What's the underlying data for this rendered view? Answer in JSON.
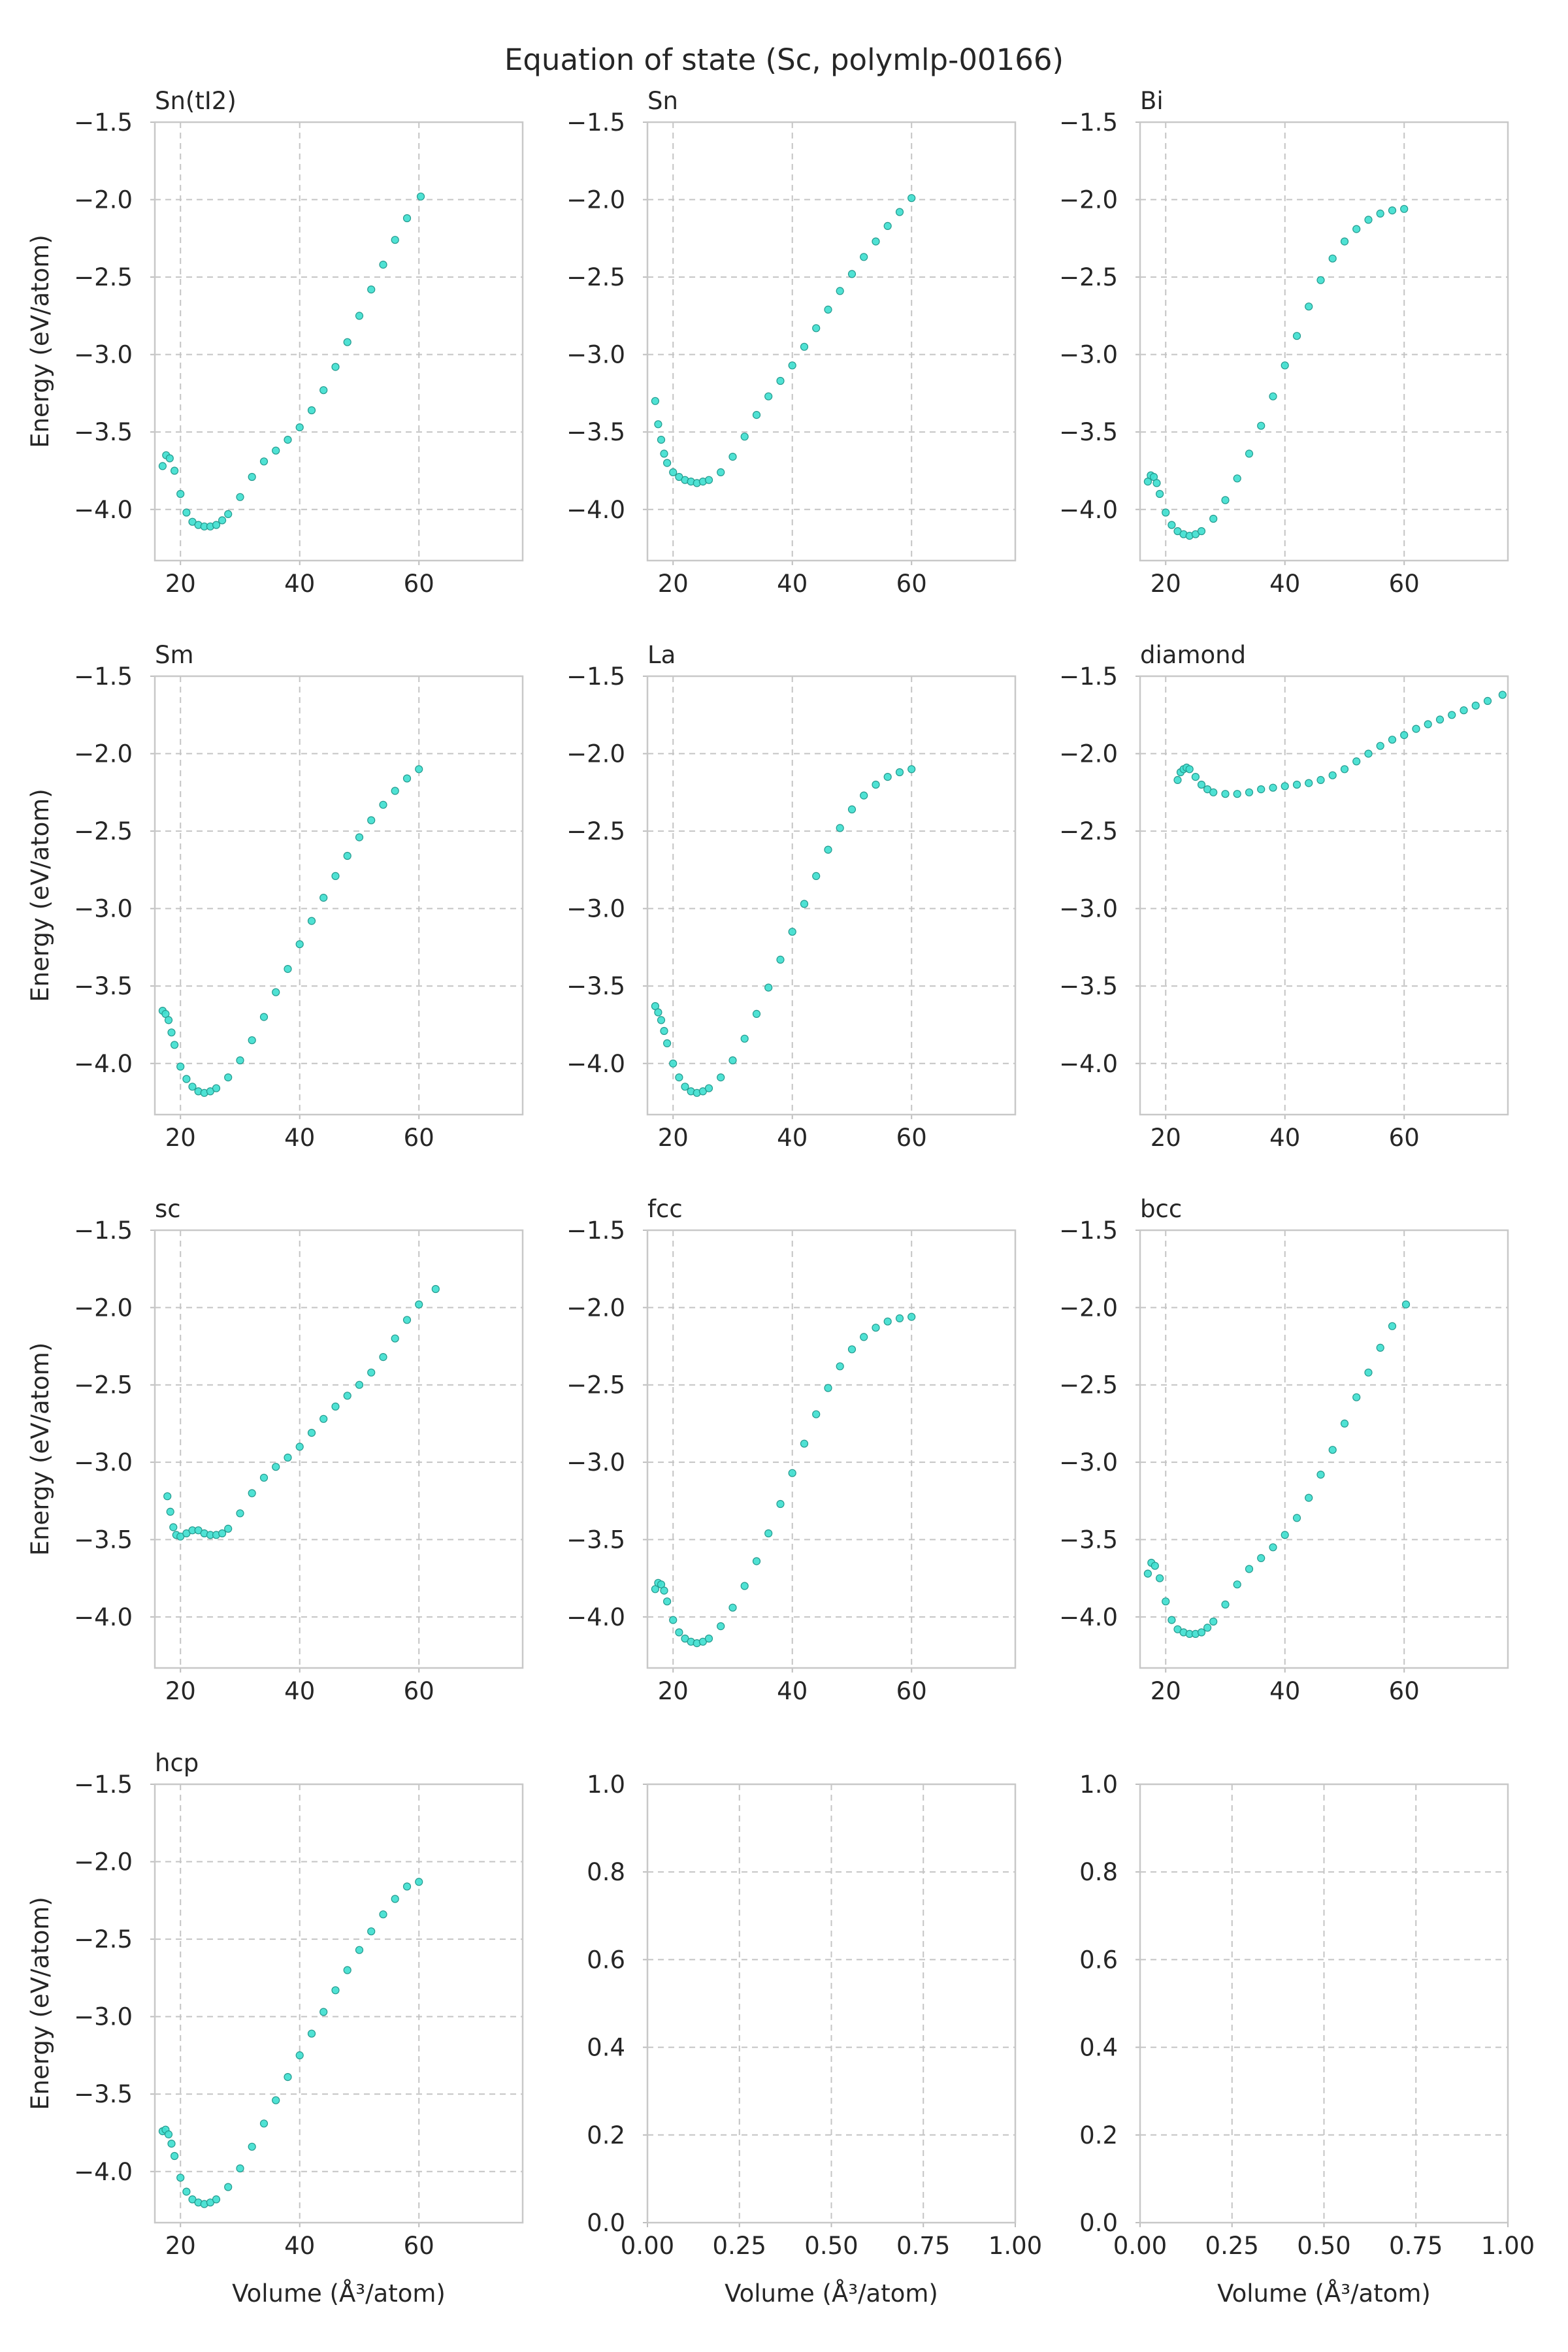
{
  "title": "Equation of state (Sc, polymlp-00166)",
  "colors": {
    "marker_fill": "#40e0d0",
    "marker_edge": "#249a8e",
    "grid": "#c4c4c4",
    "frame": "#c8c8c8"
  },
  "chart_data": [
    {
      "type": "scatter",
      "title": "Sn(tI2)",
      "xlabel": "",
      "ylabel": "Energy (eV/atom)",
      "xlim": [
        15.7,
        77.4
      ],
      "ylim": [
        -4.33,
        -1.5
      ],
      "xticks": [
        "20",
        "40",
        "60"
      ],
      "yticks": [
        "-1.5",
        "-2.0",
        "-2.5",
        "-3.0",
        "-3.5",
        "-4.0"
      ],
      "grid": true,
      "series": [
        {
          "x": [
            17.0,
            17.6,
            18.2,
            19.0,
            20.0,
            21.0,
            22.0,
            23.0,
            24.0,
            25.0,
            26.0,
            27.0,
            28.0,
            30.0,
            32.0,
            34.0,
            36.0,
            38.0,
            40.0,
            42.0,
            44.0,
            46.0,
            48.0,
            50.0,
            52.0,
            54.0,
            56.0,
            58.0,
            60.3
          ],
          "y": [
            -3.72,
            -3.65,
            -3.67,
            -3.75,
            -3.9,
            -4.02,
            -4.08,
            -4.1,
            -4.11,
            -4.11,
            -4.1,
            -4.07,
            -4.03,
            -3.92,
            -3.79,
            -3.69,
            -3.62,
            -3.55,
            -3.47,
            -3.36,
            -3.23,
            -3.08,
            -2.92,
            -2.75,
            -2.58,
            -2.42,
            -2.26,
            -2.12,
            -1.98
          ]
        }
      ]
    },
    {
      "type": "scatter",
      "title": "Sn",
      "xlabel": "",
      "ylabel": "",
      "xlim": [
        15.7,
        77.4
      ],
      "ylim": [
        -4.33,
        -1.5
      ],
      "xticks": [
        "20",
        "40",
        "60"
      ],
      "yticks": [
        "-1.5",
        "-2.0",
        "-2.5",
        "-3.0",
        "-3.5",
        "-4.0"
      ],
      "grid": true,
      "series": [
        {
          "x": [
            17.0,
            17.5,
            18.0,
            18.5,
            19.0,
            20.0,
            21.0,
            22.0,
            23.0,
            24.0,
            25.0,
            26.0,
            28.0,
            30.0,
            32.0,
            34.0,
            36.0,
            38.0,
            40.0,
            42.0,
            44.0,
            46.0,
            48.0,
            50.0,
            52.0,
            54.0,
            56.0,
            58.0,
            60.0
          ],
          "y": [
            -3.3,
            -3.45,
            -3.55,
            -3.64,
            -3.7,
            -3.76,
            -3.79,
            -3.81,
            -3.82,
            -3.83,
            -3.82,
            -3.81,
            -3.76,
            -3.66,
            -3.53,
            -3.39,
            -3.27,
            -3.17,
            -3.07,
            -2.95,
            -2.83,
            -2.71,
            -2.59,
            -2.48,
            -2.37,
            -2.27,
            -2.17,
            -2.08,
            -1.99
          ]
        }
      ]
    },
    {
      "type": "scatter",
      "title": "Bi",
      "xlabel": "",
      "ylabel": "",
      "xlim": [
        15.7,
        77.4
      ],
      "ylim": [
        -4.33,
        -1.5
      ],
      "xticks": [
        "20",
        "40",
        "60"
      ],
      "yticks": [
        "-1.5",
        "-2.0",
        "-2.5",
        "-3.0",
        "-3.5",
        "-4.0"
      ],
      "grid": true,
      "series": [
        {
          "x": [
            17.0,
            17.5,
            18.0,
            18.5,
            19.0,
            20.0,
            21.0,
            22.0,
            23.0,
            24.0,
            25.0,
            26.0,
            28.0,
            30.0,
            32.0,
            34.0,
            36.0,
            38.0,
            40.0,
            42.0,
            44.0,
            46.0,
            48.0,
            50.0,
            52.0,
            54.0,
            56.0,
            58.0,
            60.0
          ],
          "y": [
            -3.82,
            -3.78,
            -3.79,
            -3.83,
            -3.9,
            -4.02,
            -4.1,
            -4.14,
            -4.16,
            -4.17,
            -4.16,
            -4.14,
            -4.06,
            -3.94,
            -3.8,
            -3.64,
            -3.46,
            -3.27,
            -3.07,
            -2.88,
            -2.69,
            -2.52,
            -2.38,
            -2.27,
            -2.19,
            -2.13,
            -2.09,
            -2.07,
            -2.06
          ]
        }
      ]
    },
    {
      "type": "scatter",
      "title": "Sm",
      "xlabel": "",
      "ylabel": "Energy (eV/atom)",
      "xlim": [
        15.7,
        77.4
      ],
      "ylim": [
        -4.33,
        -1.5
      ],
      "xticks": [
        "20",
        "40",
        "60"
      ],
      "yticks": [
        "-1.5",
        "-2.0",
        "-2.5",
        "-3.0",
        "-3.5",
        "-4.0"
      ],
      "grid": true,
      "series": [
        {
          "x": [
            17.0,
            17.5,
            18.0,
            18.5,
            19.0,
            20.0,
            21.0,
            22.0,
            23.0,
            24.0,
            25.0,
            26.0,
            28.0,
            30.0,
            32.0,
            34.0,
            36.0,
            38.0,
            40.0,
            42.0,
            44.0,
            46.0,
            48.0,
            50.0,
            52.0,
            54.0,
            56.0,
            58.0,
            60.0
          ],
          "y": [
            -3.66,
            -3.68,
            -3.72,
            -3.8,
            -3.88,
            -4.02,
            -4.1,
            -4.15,
            -4.18,
            -4.19,
            -4.18,
            -4.16,
            -4.09,
            -3.98,
            -3.85,
            -3.7,
            -3.54,
            -3.39,
            -3.23,
            -3.08,
            -2.93,
            -2.79,
            -2.66,
            -2.54,
            -2.43,
            -2.33,
            -2.24,
            -2.16,
            -2.1
          ]
        }
      ]
    },
    {
      "type": "scatter",
      "title": "La",
      "xlabel": "",
      "ylabel": "",
      "xlim": [
        15.7,
        77.4
      ],
      "ylim": [
        -4.33,
        -1.5
      ],
      "xticks": [
        "20",
        "40",
        "60"
      ],
      "yticks": [
        "-1.5",
        "-2.0",
        "-2.5",
        "-3.0",
        "-3.5",
        "-4.0"
      ],
      "grid": true,
      "series": [
        {
          "x": [
            17.0,
            17.5,
            18.0,
            18.5,
            19.0,
            20.0,
            21.0,
            22.0,
            23.0,
            24.0,
            25.0,
            26.0,
            28.0,
            30.0,
            32.0,
            34.0,
            36.0,
            38.0,
            40.0,
            42.0,
            44.0,
            46.0,
            48.0,
            50.0,
            52.0,
            54.0,
            56.0,
            58.0,
            60.0
          ],
          "y": [
            -3.63,
            -3.67,
            -3.72,
            -3.79,
            -3.87,
            -4.0,
            -4.09,
            -4.15,
            -4.18,
            -4.19,
            -4.18,
            -4.16,
            -4.09,
            -3.98,
            -3.84,
            -3.68,
            -3.51,
            -3.33,
            -3.15,
            -2.97,
            -2.79,
            -2.62,
            -2.48,
            -2.36,
            -2.27,
            -2.2,
            -2.15,
            -2.12,
            -2.1
          ]
        }
      ]
    },
    {
      "type": "scatter",
      "title": "diamond",
      "xlabel": "",
      "ylabel": "",
      "xlim": [
        15.7,
        77.4
      ],
      "ylim": [
        -4.33,
        -1.5
      ],
      "xticks": [
        "20",
        "40",
        "60"
      ],
      "yticks": [
        "-1.5",
        "-2.0",
        "-2.5",
        "-3.0",
        "-3.5",
        "-4.0"
      ],
      "grid": true,
      "series": [
        {
          "x": [
            22.0,
            22.5,
            23.0,
            23.5,
            24.0,
            25.0,
            26.0,
            27.0,
            28.0,
            30.0,
            32.0,
            34.0,
            36.0,
            38.0,
            40.0,
            42.0,
            44.0,
            46.0,
            48.0,
            50.0,
            52.0,
            54.0,
            56.0,
            58.0,
            60.0,
            62.0,
            64.0,
            66.0,
            68.0,
            70.0,
            72.0,
            74.0,
            76.5
          ],
          "y": [
            -2.17,
            -2.12,
            -2.1,
            -2.09,
            -2.1,
            -2.15,
            -2.2,
            -2.23,
            -2.25,
            -2.26,
            -2.26,
            -2.25,
            -2.23,
            -2.22,
            -2.21,
            -2.2,
            -2.19,
            -2.17,
            -2.14,
            -2.1,
            -2.05,
            -2.0,
            -1.95,
            -1.91,
            -1.88,
            -1.84,
            -1.81,
            -1.78,
            -1.75,
            -1.72,
            -1.69,
            -1.66,
            -1.62
          ]
        }
      ]
    },
    {
      "type": "scatter",
      "title": "sc",
      "xlabel": "",
      "ylabel": "Energy (eV/atom)",
      "xlim": [
        15.7,
        77.4
      ],
      "ylim": [
        -4.33,
        -1.5
      ],
      "xticks": [
        "20",
        "40",
        "60"
      ],
      "yticks": [
        "-1.5",
        "-2.0",
        "-2.5",
        "-3.0",
        "-3.5",
        "-4.0"
      ],
      "grid": true,
      "series": [
        {
          "x": [
            17.8,
            18.3,
            18.8,
            19.3,
            20.0,
            21.0,
            22.0,
            23.0,
            24.0,
            25.0,
            26.0,
            27.0,
            28.0,
            30.0,
            32.0,
            34.0,
            36.0,
            38.0,
            40.0,
            42.0,
            44.0,
            46.0,
            48.0,
            50.0,
            52.0,
            54.0,
            56.0,
            58.0,
            60.0,
            62.8
          ],
          "y": [
            -3.22,
            -3.32,
            -3.42,
            -3.47,
            -3.48,
            -3.46,
            -3.44,
            -3.44,
            -3.46,
            -3.47,
            -3.47,
            -3.46,
            -3.43,
            -3.33,
            -3.2,
            -3.1,
            -3.03,
            -2.97,
            -2.9,
            -2.81,
            -2.72,
            -2.64,
            -2.57,
            -2.5,
            -2.42,
            -2.32,
            -2.2,
            -2.08,
            -1.98,
            -1.88
          ]
        }
      ]
    },
    {
      "type": "scatter",
      "title": "fcc",
      "xlabel": "",
      "ylabel": "",
      "xlim": [
        15.7,
        77.4
      ],
      "ylim": [
        -4.33,
        -1.5
      ],
      "xticks": [
        "20",
        "40",
        "60"
      ],
      "yticks": [
        "-1.5",
        "-2.0",
        "-2.5",
        "-3.0",
        "-3.5",
        "-4.0"
      ],
      "grid": true,
      "series": [
        {
          "x": [
            17.0,
            17.5,
            18.0,
            18.5,
            19.0,
            20.0,
            21.0,
            22.0,
            23.0,
            24.0,
            25.0,
            26.0,
            28.0,
            30.0,
            32.0,
            34.0,
            36.0,
            38.0,
            40.0,
            42.0,
            44.0,
            46.0,
            48.0,
            50.0,
            52.0,
            54.0,
            56.0,
            58.0,
            60.0
          ],
          "y": [
            -3.82,
            -3.78,
            -3.79,
            -3.83,
            -3.9,
            -4.02,
            -4.1,
            -4.14,
            -4.16,
            -4.17,
            -4.16,
            -4.14,
            -4.06,
            -3.94,
            -3.8,
            -3.64,
            -3.46,
            -3.27,
            -3.07,
            -2.88,
            -2.69,
            -2.52,
            -2.38,
            -2.27,
            -2.19,
            -2.13,
            -2.09,
            -2.07,
            -2.06
          ]
        }
      ]
    },
    {
      "type": "scatter",
      "title": "bcc",
      "xlabel": "",
      "ylabel": "",
      "xlim": [
        15.7,
        77.4
      ],
      "ylim": [
        -4.33,
        -1.5
      ],
      "xticks": [
        "20",
        "40",
        "60"
      ],
      "yticks": [
        "-1.5",
        "-2.0",
        "-2.5",
        "-3.0",
        "-3.5",
        "-4.0"
      ],
      "grid": true,
      "series": [
        {
          "x": [
            17.0,
            17.6,
            18.2,
            19.0,
            20.0,
            21.0,
            22.0,
            23.0,
            24.0,
            25.0,
            26.0,
            27.0,
            28.0,
            30.0,
            32.0,
            34.0,
            36.0,
            38.0,
            40.0,
            42.0,
            44.0,
            46.0,
            48.0,
            50.0,
            52.0,
            54.0,
            56.0,
            58.0,
            60.3
          ],
          "y": [
            -3.72,
            -3.65,
            -3.67,
            -3.75,
            -3.9,
            -4.02,
            -4.08,
            -4.1,
            -4.11,
            -4.11,
            -4.1,
            -4.07,
            -4.03,
            -3.92,
            -3.79,
            -3.69,
            -3.62,
            -3.55,
            -3.47,
            -3.36,
            -3.23,
            -3.08,
            -2.92,
            -2.75,
            -2.58,
            -2.42,
            -2.26,
            -2.12,
            -1.98
          ]
        }
      ]
    },
    {
      "type": "scatter",
      "title": "hcp",
      "xlabel": "Volume (Å³/atom)",
      "ylabel": "Energy (eV/atom)",
      "xlim": [
        15.7,
        77.4
      ],
      "ylim": [
        -4.33,
        -1.5
      ],
      "xticks": [
        "20",
        "40",
        "60"
      ],
      "yticks": [
        "-1.5",
        "-2.0",
        "-2.5",
        "-3.0",
        "-3.5",
        "-4.0"
      ],
      "grid": true,
      "series": [
        {
          "x": [
            17.0,
            17.5,
            18.0,
            18.5,
            19.0,
            20.0,
            21.0,
            22.0,
            23.0,
            24.0,
            25.0,
            26.0,
            28.0,
            30.0,
            32.0,
            34.0,
            36.0,
            38.0,
            40.0,
            42.0,
            44.0,
            46.0,
            48.0,
            50.0,
            52.0,
            54.0,
            56.0,
            58.0,
            60.0
          ],
          "y": [
            -3.74,
            -3.73,
            -3.76,
            -3.82,
            -3.9,
            -4.04,
            -4.13,
            -4.18,
            -4.2,
            -4.21,
            -4.2,
            -4.18,
            -4.1,
            -3.98,
            -3.84,
            -3.69,
            -3.54,
            -3.39,
            -3.25,
            -3.11,
            -2.97,
            -2.83,
            -2.7,
            -2.57,
            -2.45,
            -2.34,
            -2.24,
            -2.16,
            -2.13
          ]
        }
      ]
    },
    {
      "type": "scatter",
      "title": "",
      "xlabel": "Volume (Å³/atom)",
      "ylabel": "",
      "xlim": [
        0,
        1
      ],
      "ylim": [
        0,
        1
      ],
      "xticks": [
        "0.00",
        "0.25",
        "0.50",
        "0.75",
        "1.00"
      ],
      "yticks": [
        "0.0",
        "0.2",
        "0.4",
        "0.6",
        "0.8",
        "1.0"
      ],
      "grid": true,
      "series": []
    },
    {
      "type": "scatter",
      "title": "",
      "xlabel": "Volume (Å³/atom)",
      "ylabel": "",
      "xlim": [
        0,
        1
      ],
      "ylim": [
        0,
        1
      ],
      "xticks": [
        "0.00",
        "0.25",
        "0.50",
        "0.75",
        "1.00"
      ],
      "yticks": [
        "0.0",
        "0.2",
        "0.4",
        "0.6",
        "0.8",
        "1.0"
      ],
      "grid": true,
      "series": []
    }
  ]
}
